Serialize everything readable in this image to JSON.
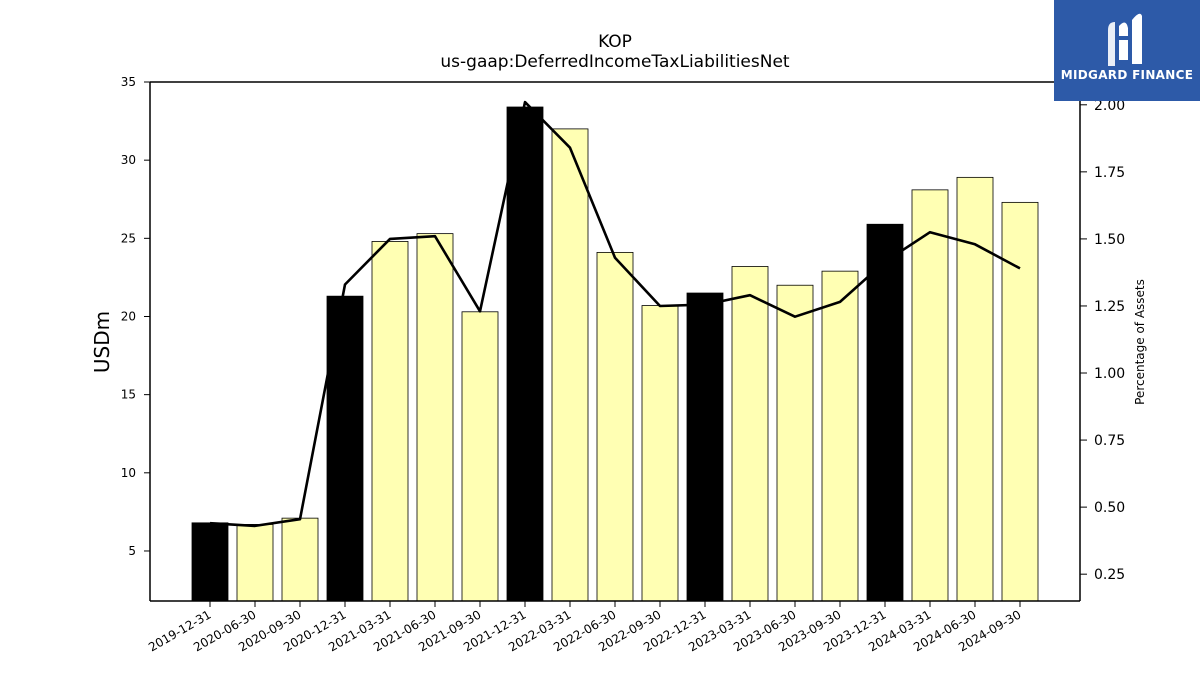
{
  "chart_data": {
    "type": "bar",
    "title": "KOP",
    "subtitle": "us-gaap:DeferredIncomeTaxLiabilitiesNet",
    "ylabel": "USDm",
    "y2label": "Percentage of Assets",
    "ylim": [
      1.8,
      35
    ],
    "y2lim": [
      0.15,
      2.085
    ],
    "yticks": [
      5,
      10,
      15,
      20,
      25,
      30,
      35
    ],
    "y2ticks": [
      "0.25",
      "0.50",
      "0.75",
      "1.00",
      "1.25",
      "1.50",
      "1.75",
      "2.00"
    ],
    "categories": [
      "2019-12-31",
      "2020-06-30",
      "2020-09-30",
      "2020-12-31",
      "2021-03-31",
      "2021-06-30",
      "2021-09-30",
      "2021-12-31",
      "2022-03-31",
      "2022-06-30",
      "2022-09-30",
      "2022-12-31",
      "2023-03-31",
      "2023-06-30",
      "2023-09-30",
      "2023-12-31",
      "2024-03-31",
      "2024-06-30",
      "2024-09-30"
    ],
    "series": [
      {
        "type": "bar",
        "values": [
          6.8,
          6.7,
          7.1,
          21.3,
          24.8,
          25.3,
          20.3,
          33.4,
          32.0,
          24.1,
          20.7,
          21.5,
          23.2,
          22.0,
          22.9,
          25.9,
          28.1,
          28.9,
          27.3
        ],
        "annual": [
          true,
          false,
          false,
          true,
          false,
          false,
          false,
          true,
          false,
          false,
          false,
          true,
          false,
          false,
          false,
          true,
          false,
          false,
          false
        ]
      },
      {
        "type": "line",
        "axis": "right",
        "values": [
          0.44,
          0.43,
          0.455,
          1.33,
          1.5,
          1.51,
          1.23,
          2.01,
          1.84,
          1.43,
          1.25,
          1.255,
          1.29,
          1.21,
          1.265,
          1.415,
          1.525,
          1.48,
          1.39
        ]
      }
    ],
    "colors": {
      "annual_bar": "#000000",
      "quarter_bar": "#ffffb3",
      "line": "#000000"
    },
    "grid": false
  },
  "logo": {
    "text": "MIDGARD FINANCE"
  }
}
